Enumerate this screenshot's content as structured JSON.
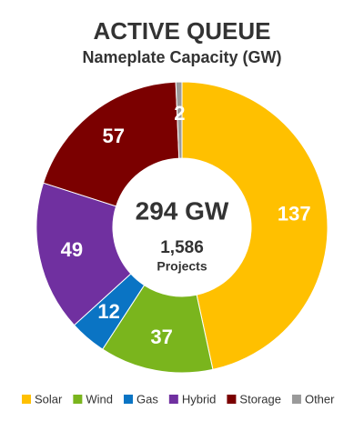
{
  "chart_data": {
    "type": "donut",
    "title": "ACTIVE QUEUE",
    "subtitle": "Nameplate Capacity (GW)",
    "center_texts": [
      "294 GW",
      "1,586",
      "Projects"
    ],
    "categories": [
      "Solar",
      "Wind",
      "Gas",
      "Hybrid",
      "Storage",
      "Other"
    ],
    "values": [
      137,
      37,
      12,
      49,
      57,
      2
    ],
    "colors": [
      "#FFC000",
      "#7AB51D",
      "#0A74C4",
      "#7030A0",
      "#7B0000",
      "#9A9A9A"
    ],
    "legend": "bottom"
  }
}
